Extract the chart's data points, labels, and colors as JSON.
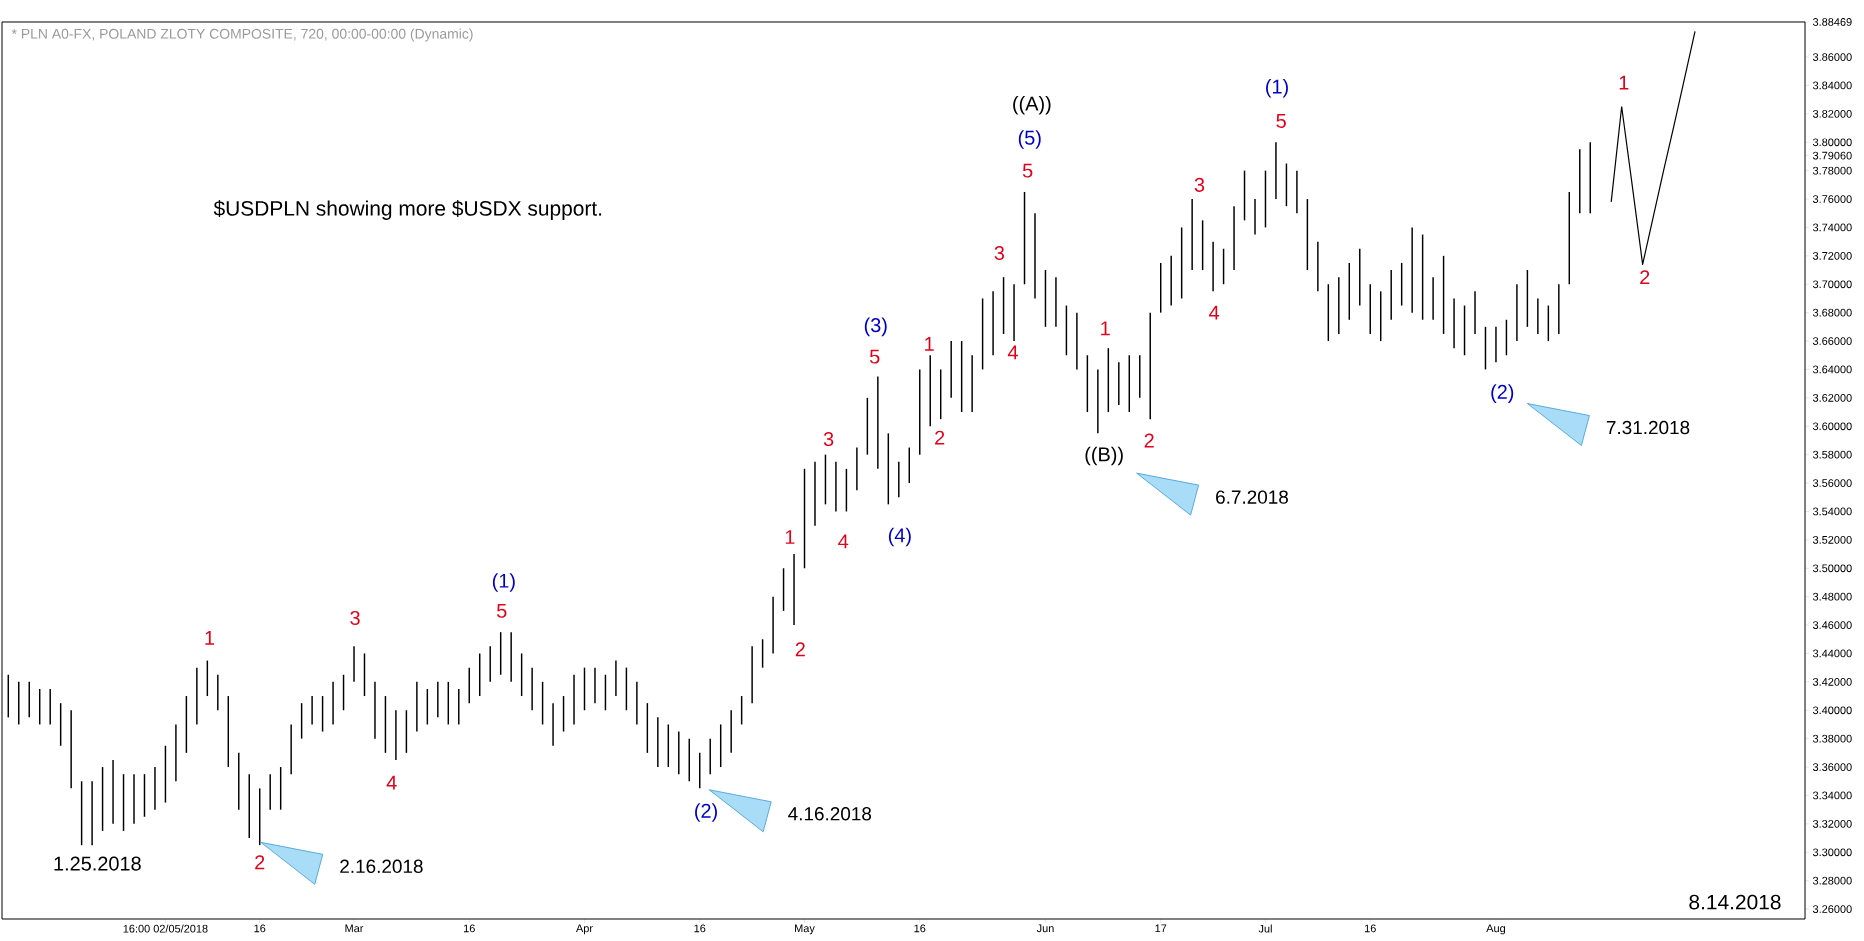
{
  "chart_data": {
    "type": "bar",
    "title": "* PLN A0-FX, POLAND ZLOTY COMPOSITE, 720, 00:00-00:00 (Dynamic)",
    "categories": [
      null,
      null,
      null,
      null,
      null,
      null,
      null,
      null,
      null,
      null,
      null,
      null,
      null,
      null,
      null,
      "16:00 02/05/2018",
      null,
      null,
      null,
      null,
      null,
      null,
      null,
      null,
      "16",
      null,
      null,
      null,
      null,
      null,
      null,
      null,
      null,
      "Mar",
      null,
      null,
      null,
      null,
      null,
      null,
      null,
      null,
      null,
      null,
      "16",
      null,
      null,
      null,
      null,
      null,
      null,
      null,
      null,
      null,
      null,
      "Apr",
      null,
      null,
      null,
      null,
      null,
      null,
      null,
      null,
      null,
      null,
      "16",
      null,
      null,
      null,
      null,
      null,
      null,
      null,
      null,
      null,
      "May",
      null,
      null,
      null,
      null,
      null,
      null,
      null,
      null,
      null,
      null,
      "16",
      null,
      null,
      null,
      null,
      null,
      null,
      null,
      null,
      null,
      null,
      null,
      "Jun",
      null,
      null,
      null,
      null,
      null,
      null,
      null,
      null,
      null,
      null,
      "17",
      null,
      null,
      null,
      null,
      null,
      null,
      null,
      null,
      null,
      "Jul",
      null,
      null,
      null,
      null,
      null,
      null,
      null,
      null,
      null,
      "16",
      null,
      null,
      null,
      null,
      null,
      null,
      null,
      null,
      null,
      null,
      null,
      "Aug",
      null,
      null,
      null,
      null,
      null,
      null,
      null,
      null,
      null,
      null,
      null,
      null,
      null,
      null,
      null,
      null,
      null,
      null,
      null,
      null,
      null,
      null,
      null,
      null,
      null,
      null,
      null,
      null,
      null
    ],
    "series": [
      {
        "color": "#000000",
        "base": [
          3.395,
          3.39,
          3.395,
          3.39,
          3.39,
          3.375,
          3.345,
          3.305,
          3.305,
          3.315,
          3.32,
          3.315,
          3.32,
          3.325,
          3.33,
          3.335,
          3.35,
          3.37,
          3.39,
          3.41,
          3.4,
          3.36,
          3.33,
          3.31,
          3.305,
          3.33,
          3.33,
          3.355,
          3.38,
          3.39,
          3.385,
          3.39,
          3.4,
          3.42,
          3.41,
          3.38,
          3.37,
          3.365,
          3.37,
          3.385,
          3.39,
          3.395,
          3.39,
          3.39,
          3.405,
          3.41,
          3.42,
          3.425,
          3.42,
          3.41,
          3.4,
          3.39,
          3.375,
          3.385,
          3.39,
          3.4,
          3.405,
          3.4,
          3.41,
          3.4,
          3.39,
          3.37,
          3.36,
          3.36,
          3.355,
          3.35,
          3.345,
          3.355,
          3.36,
          3.37,
          3.39,
          3.405,
          3.43,
          3.44,
          3.47,
          3.46,
          3.5,
          3.53,
          3.545,
          3.54,
          3.54,
          3.555,
          3.58,
          3.57,
          3.545,
          3.55,
          3.56,
          3.58,
          3.6,
          3.605,
          3.62,
          3.61,
          3.61,
          3.64,
          3.65,
          3.665,
          3.66,
          3.7,
          3.69,
          3.67,
          3.67,
          3.65,
          3.64,
          3.61,
          3.595,
          3.61,
          3.615,
          3.61,
          3.62,
          3.605,
          3.68,
          3.685,
          3.69,
          3.71,
          3.71,
          3.695,
          3.7,
          3.71,
          3.745,
          3.735,
          3.74,
          3.76,
          3.755,
          3.75,
          3.71,
          3.695,
          3.66,
          3.665,
          3.675,
          3.685,
          3.665,
          3.66,
          3.675,
          3.685,
          3.68,
          3.675,
          3.675,
          3.665,
          3.655,
          3.65,
          3.665,
          3.64,
          3.645,
          3.65,
          3.66,
          3.67,
          3.665,
          3.66,
          3.665,
          3.7,
          3.75,
          3.75,
          null,
          null,
          null,
          null,
          null,
          null,
          null,
          null,
          null,
          null,
          null,
          null,
          null,
          null,
          null,
          null,
          null,
          null,
          null,
          null
        ],
        "values": [
          0.03,
          0.03,
          0.025,
          0.025,
          0.025,
          0.03,
          0.055,
          0.045,
          0.045,
          0.045,
          0.045,
          0.04,
          0.035,
          0.03,
          0.03,
          0.04,
          0.04,
          0.04,
          0.04,
          0.025,
          0.025,
          0.05,
          0.04,
          0.045,
          0.04,
          0.025,
          0.03,
          0.035,
          0.025,
          0.02,
          0.025,
          0.03,
          0.025,
          0.025,
          0.03,
          0.04,
          0.04,
          0.035,
          0.03,
          0.035,
          0.025,
          0.025,
          0.03,
          0.025,
          0.025,
          0.03,
          0.025,
          0.03,
          0.035,
          0.03,
          0.03,
          0.03,
          0.03,
          0.025,
          0.035,
          0.03,
          0.025,
          0.025,
          0.025,
          0.03,
          0.03,
          0.035,
          0.035,
          0.03,
          0.03,
          0.03,
          0.025,
          0.025,
          0.03,
          0.03,
          0.02,
          0.04,
          0.02,
          0.04,
          0.03,
          0.05,
          0.07,
          0.045,
          0.035,
          0.035,
          0.03,
          0.03,
          0.04,
          0.065,
          0.05,
          0.025,
          0.025,
          0.06,
          0.05,
          0.035,
          0.04,
          0.05,
          0.04,
          0.05,
          0.045,
          0.04,
          0.04,
          0.065,
          0.06,
          0.04,
          0.035,
          0.035,
          0.04,
          0.04,
          0.045,
          0.045,
          0.03,
          0.04,
          0.03,
          0.075,
          0.035,
          0.035,
          0.05,
          0.05,
          0.035,
          0.035,
          0.025,
          0.045,
          0.035,
          0.025,
          0.04,
          0.04,
          0.03,
          0.03,
          0.05,
          0.035,
          0.04,
          0.04,
          0.04,
          0.04,
          0.035,
          0.035,
          0.035,
          0.03,
          0.06,
          0.06,
          0.03,
          0.055,
          0.035,
          0.035,
          0.03,
          0.03,
          0.025,
          0.025,
          0.04,
          0.04,
          0.025,
          0.025,
          0.035,
          0.065,
          0.045,
          0.05,
          null,
          null,
          null,
          null,
          null,
          null,
          null,
          null,
          null,
          null,
          null,
          null,
          null,
          null,
          null,
          null,
          null,
          null,
          null,
          null
        ]
      },
      {
        "type": "line",
        "color": "#000000",
        "values": [
          null,
          null,
          null,
          null,
          null,
          null,
          null,
          null,
          null,
          null,
          null,
          null,
          null,
          null,
          null,
          null,
          null,
          null,
          null,
          null,
          null,
          null,
          null,
          null,
          null,
          null,
          null,
          null,
          null,
          null,
          null,
          null,
          null,
          null,
          null,
          null,
          null,
          null,
          null,
          null,
          null,
          null,
          null,
          null,
          null,
          null,
          null,
          null,
          null,
          null,
          null,
          null,
          null,
          null,
          null,
          null,
          null,
          null,
          null,
          null,
          null,
          null,
          null,
          null,
          null,
          null,
          null,
          null,
          null,
          null,
          null,
          null,
          null,
          null,
          null,
          null,
          null,
          null,
          null,
          null,
          null,
          null,
          null,
          null,
          null,
          null,
          null,
          null,
          null,
          null,
          null,
          null,
          null,
          null,
          null,
          null,
          null,
          null,
          null,
          null,
          null,
          null,
          null,
          null,
          null,
          null,
          null,
          null,
          null,
          null,
          null,
          null,
          null,
          null,
          null,
          null,
          null,
          null,
          null,
          null,
          null,
          null,
          null,
          null,
          null,
          null,
          null,
          null,
          null,
          null,
          null,
          null,
          null,
          null,
          null,
          null,
          null,
          null,
          null,
          null,
          null,
          null,
          null,
          null,
          null,
          null,
          null,
          null,
          null,
          null,
          null,
          null,
          null,
          3.758,
          3.825,
          3.77,
          3.714,
          3.747,
          3.78,
          3.812,
          3.845,
          3.878,
          null,
          null,
          null,
          null,
          null,
          null,
          null,
          null,
          null,
          null
        ]
      }
    ],
    "ylim": [
      3.253,
      3.88469
    ],
    "yticks": [
      {
        "value": 3.26,
        "label": "3.26000"
      },
      {
        "value": 3.28,
        "label": "3.28000"
      },
      {
        "value": 3.3,
        "label": "3.30000"
      },
      {
        "value": 3.32,
        "label": "3.32000"
      },
      {
        "value": 3.34,
        "label": "3.34000"
      },
      {
        "value": 3.36,
        "label": "3.36000"
      },
      {
        "value": 3.38,
        "label": "3.38000"
      },
      {
        "value": 3.4,
        "label": "3.40000"
      },
      {
        "value": 3.42,
        "label": "3.42000"
      },
      {
        "value": 3.44,
        "label": "3.44000"
      },
      {
        "value": 3.46,
        "label": "3.46000"
      },
      {
        "value": 3.48,
        "label": "3.48000"
      },
      {
        "value": 3.5,
        "label": "3.50000"
      },
      {
        "value": 3.52,
        "label": "3.52000"
      },
      {
        "value": 3.54,
        "label": "3.54000"
      },
      {
        "value": 3.56,
        "label": "3.56000"
      },
      {
        "value": 3.58,
        "label": "3.58000"
      },
      {
        "value": 3.6,
        "label": "3.60000"
      },
      {
        "value": 3.62,
        "label": "3.62000"
      },
      {
        "value": 3.64,
        "label": "3.64000"
      },
      {
        "value": 3.66,
        "label": "3.66000"
      },
      {
        "value": 3.68,
        "label": "3.68000"
      },
      {
        "value": 3.7,
        "label": "3.70000"
      },
      {
        "value": 3.72,
        "label": "3.72000"
      },
      {
        "value": 3.74,
        "label": "3.74000"
      },
      {
        "value": 3.76,
        "label": "3.76000"
      },
      {
        "value": 3.78,
        "label": "3.78000"
      },
      {
        "value": 3.7906,
        "label": "3.79060"
      },
      {
        "value": 3.8,
        "label": "3.80000"
      },
      {
        "value": 3.82,
        "label": "3.82000"
      },
      {
        "value": 3.84,
        "label": "3.84000"
      },
      {
        "value": 3.86,
        "label": "3.86000"
      },
      {
        "value": 3.88469,
        "label": "3.88469"
      }
    ],
    "annotations": [
      "$USDPLN showing more $USDX support.",
      "8.14.2018",
      "1",
      "2",
      "3",
      "4",
      "5",
      "(1)",
      "(2)",
      "1",
      "2",
      "3",
      "4",
      "5",
      "(3)",
      "(4)",
      "1",
      "2",
      "3",
      "4",
      "5",
      "(5)",
      "((A))",
      "1",
      "((B))",
      "2",
      "3",
      "4",
      "5",
      "(1)",
      "(2)",
      "1",
      "2",
      "1.25.2018",
      "2.16.2018",
      "4.16.2018",
      "6.7.2018",
      "7.31.2018"
    ]
  }
}
